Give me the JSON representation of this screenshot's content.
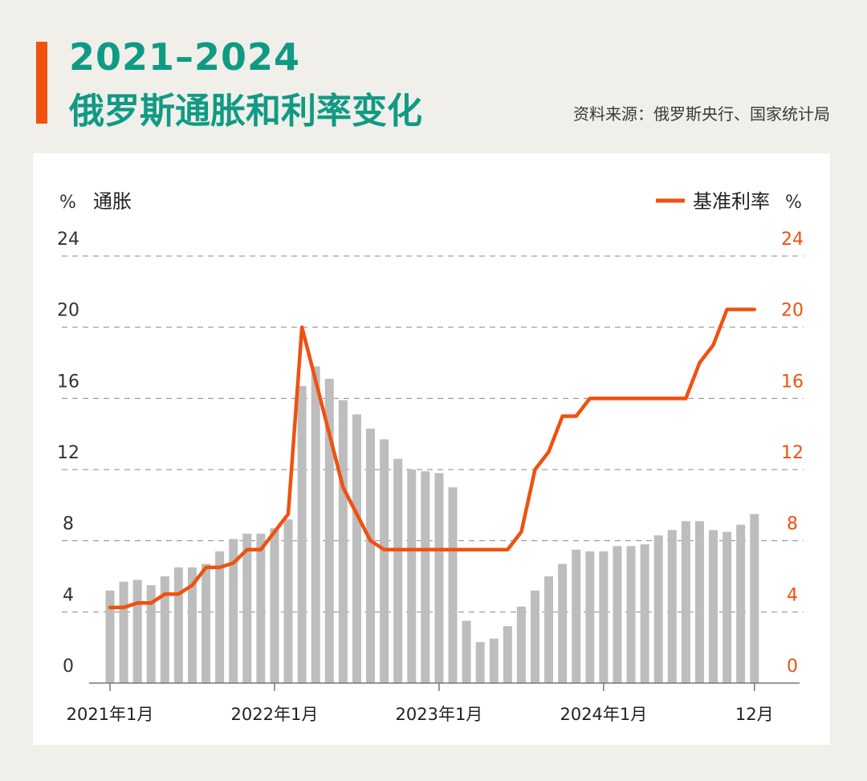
{
  "header": {
    "title_line1": "2021–2024",
    "title_line2": "俄罗斯通胀和利率变化",
    "source": "资料来源：俄罗斯央行、国家统计局"
  },
  "colors": {
    "accent": "#f0510f",
    "title": "#109a84",
    "bars": "#bdbdbd",
    "background": "#f0efea"
  },
  "chart_data": {
    "type": "bar+line",
    "left_axis": {
      "unit_label": "%",
      "label": "通胀",
      "ticks": [
        "24",
        "20",
        "16",
        "12",
        "8",
        "4",
        "0"
      ],
      "ylim": [
        0,
        24
      ]
    },
    "right_axis": {
      "unit_label": "%",
      "ticks": [
        "24",
        "20",
        "16",
        "12",
        "8",
        "4",
        "0"
      ],
      "ylim": [
        0,
        24
      ]
    },
    "legend": {
      "label": "基准利率"
    },
    "x_tick_labels": [
      {
        "label": "2021年1月",
        "index": 0
      },
      {
        "label": "2022年1月",
        "index": 12
      },
      {
        "label": "2023年1月",
        "index": 24
      },
      {
        "label": "2024年1月",
        "index": 36
      },
      {
        "label": "12月",
        "index": 47
      }
    ],
    "months": [
      "2021-01",
      "2021-02",
      "2021-03",
      "2021-04",
      "2021-05",
      "2021-06",
      "2021-07",
      "2021-08",
      "2021-09",
      "2021-10",
      "2021-11",
      "2021-12",
      "2022-01",
      "2022-02",
      "2022-03",
      "2022-04",
      "2022-05",
      "2022-06",
      "2022-07",
      "2022-08",
      "2022-09",
      "2022-10",
      "2022-11",
      "2022-12",
      "2023-01",
      "2023-02",
      "2023-03",
      "2023-04",
      "2023-05",
      "2023-06",
      "2023-07",
      "2023-08",
      "2023-09",
      "2023-10",
      "2023-11",
      "2023-12",
      "2024-01",
      "2024-02",
      "2024-03",
      "2024-04",
      "2024-05",
      "2024-06",
      "2024-07",
      "2024-08",
      "2024-09",
      "2024-10",
      "2024-11",
      "2024-12"
    ],
    "series": [
      {
        "name": "通胀",
        "kind": "bar",
        "values": [
          5.2,
          5.7,
          5.8,
          5.5,
          6.0,
          6.5,
          6.5,
          6.7,
          7.4,
          8.1,
          8.4,
          8.4,
          8.7,
          9.2,
          16.7,
          17.8,
          17.1,
          15.9,
          15.1,
          14.3,
          13.7,
          12.6,
          12.0,
          11.9,
          11.8,
          11.0,
          3.5,
          2.3,
          2.5,
          3.2,
          4.3,
          5.2,
          6.0,
          6.7,
          7.5,
          7.4,
          7.4,
          7.7,
          7.7,
          7.8,
          8.3,
          8.6,
          9.1,
          9.1,
          8.6,
          8.5,
          8.9,
          9.5
        ]
      },
      {
        "name": "基准利率",
        "kind": "line",
        "values": [
          4.25,
          4.25,
          4.5,
          4.5,
          5.0,
          5.0,
          5.5,
          6.5,
          6.5,
          6.75,
          7.5,
          7.5,
          8.5,
          9.5,
          20.0,
          17.0,
          14.0,
          11.0,
          9.5,
          8.0,
          7.5,
          7.5,
          7.5,
          7.5,
          7.5,
          7.5,
          7.5,
          7.5,
          7.5,
          7.5,
          8.5,
          12.0,
          13.0,
          15.0,
          15.0,
          16.0,
          16.0,
          16.0,
          16.0,
          16.0,
          16.0,
          16.0,
          16.0,
          18.0,
          19.0,
          21.0,
          21.0,
          21.0
        ]
      }
    ]
  }
}
